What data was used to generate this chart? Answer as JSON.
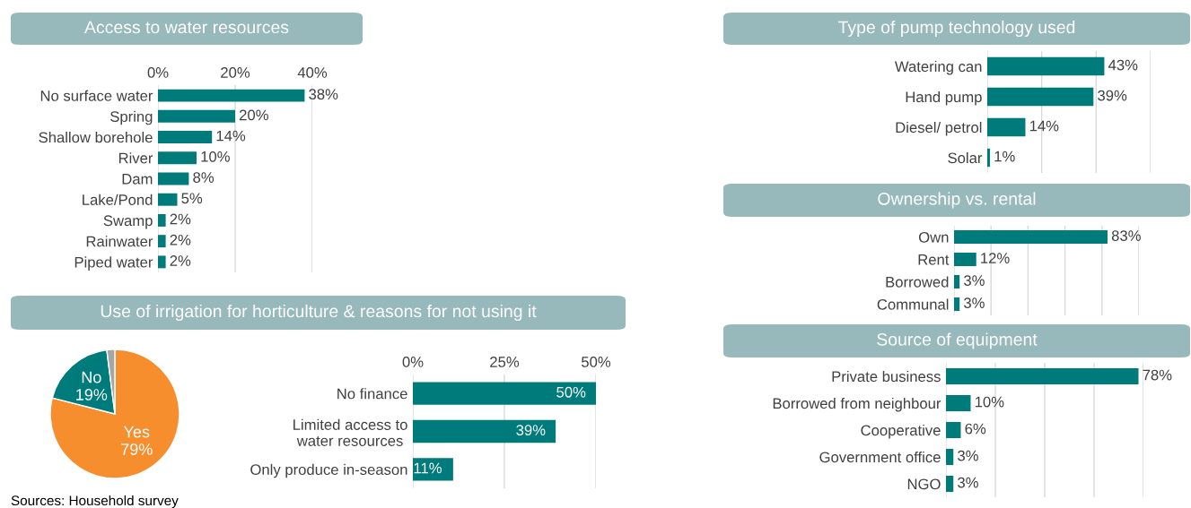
{
  "chart_data": [
    {
      "type": "bar",
      "orientation": "horizontal",
      "title": "Access to water resources",
      "categories": [
        "No surface water",
        "Spring",
        "Shallow borehole",
        "River",
        "Dam",
        "Lake/Pond",
        "Swamp",
        "Rainwater",
        "Piped water"
      ],
      "values": [
        38,
        20,
        14,
        10,
        8,
        5,
        2,
        2,
        2
      ],
      "value_labels": [
        "38%",
        "20%",
        "14%",
        "10%",
        "8%",
        "5%",
        "2%",
        "2%",
        "2%"
      ],
      "color": "#007b7b",
      "xlim": [
        0,
        40
      ],
      "xticks": [
        {
          "value": 0,
          "label": "0%"
        },
        {
          "value": 20,
          "label": "20%"
        },
        {
          "value": 40,
          "label": "40%"
        }
      ],
      "grid": "x"
    },
    {
      "type": "pie",
      "title": "Use of irrigation for horticulture & reasons for not using it",
      "categories": [
        "Yes",
        "No",
        null
      ],
      "values": [
        79,
        19,
        2
      ],
      "value_labels": [
        "79%",
        "19%",
        null
      ],
      "colors": [
        "#f68e2d",
        "#007b7b",
        "#a6a6a6"
      ],
      "annotations": [
        "Sources: Household survey"
      ]
    },
    {
      "type": "bar",
      "orientation": "horizontal",
      "categories": [
        "No finance",
        "Limited access to water resources",
        "Only produce in-season"
      ],
      "values": [
        50,
        39,
        11
      ],
      "value_labels": [
        "50%",
        "39%",
        "11%"
      ],
      "color": "#007b7b",
      "xlim": [
        0,
        50
      ],
      "xticks": [
        {
          "value": 0,
          "label": "0%"
        },
        {
          "value": 25,
          "label": "25%"
        },
        {
          "value": 50,
          "label": "50%"
        }
      ],
      "grid": "x"
    },
    {
      "type": "bar",
      "orientation": "horizontal",
      "title": "Type of pump technology used",
      "categories": [
        "Watering can",
        "Hand pump",
        "Diesel/ petrol",
        "Solar"
      ],
      "values": [
        43,
        39,
        14,
        1
      ],
      "value_labels": [
        "43%",
        "39%",
        "14%",
        "1%"
      ],
      "color": "#007b7b",
      "xlim": [
        0,
        60
      ],
      "xticks": [
        {
          "value": 0,
          "label": null
        },
        {
          "value": 20,
          "label": null
        },
        {
          "value": 40,
          "label": null
        },
        {
          "value": 60,
          "label": null
        }
      ],
      "grid": "x",
      "tick_labels": "y"
    },
    {
      "type": "bar",
      "orientation": "horizontal",
      "title": "Ownership vs. rental",
      "categories": [
        "Own",
        "Rent",
        "Borrowed",
        "Communal"
      ],
      "values": [
        83,
        12,
        3,
        3
      ],
      "value_labels": [
        "83%",
        "12%",
        "3%",
        "3%"
      ],
      "color": "#007b7b",
      "xlim": [
        0,
        100
      ],
      "xticks": [
        {
          "value": 0,
          "label": null
        },
        {
          "value": 20,
          "label": null
        },
        {
          "value": 40,
          "label": null
        },
        {
          "value": 60,
          "label": null
        },
        {
          "value": 80,
          "label": null
        },
        {
          "value": 100,
          "label": null
        }
      ],
      "grid": "x",
      "tick_labels": "y"
    },
    {
      "type": "bar",
      "orientation": "horizontal",
      "title": "Source of equipment",
      "categories": [
        "Private business",
        "Borrowed from neighbour",
        "Cooperative",
        "Government office",
        "NGO"
      ],
      "values": [
        78,
        10,
        6,
        3,
        3
      ],
      "value_labels": [
        "78%",
        "10%",
        "6%",
        "3%",
        "3%"
      ],
      "color": "#007b7b",
      "xlim": [
        0,
        80
      ],
      "xticks": [
        {
          "value": 0,
          "label": null
        },
        {
          "value": 20,
          "label": null
        },
        {
          "value": 40,
          "label": null
        },
        {
          "value": 60,
          "label": null
        },
        {
          "value": 80,
          "label": null
        }
      ],
      "grid": "x",
      "tick_labels": "y"
    }
  ]
}
